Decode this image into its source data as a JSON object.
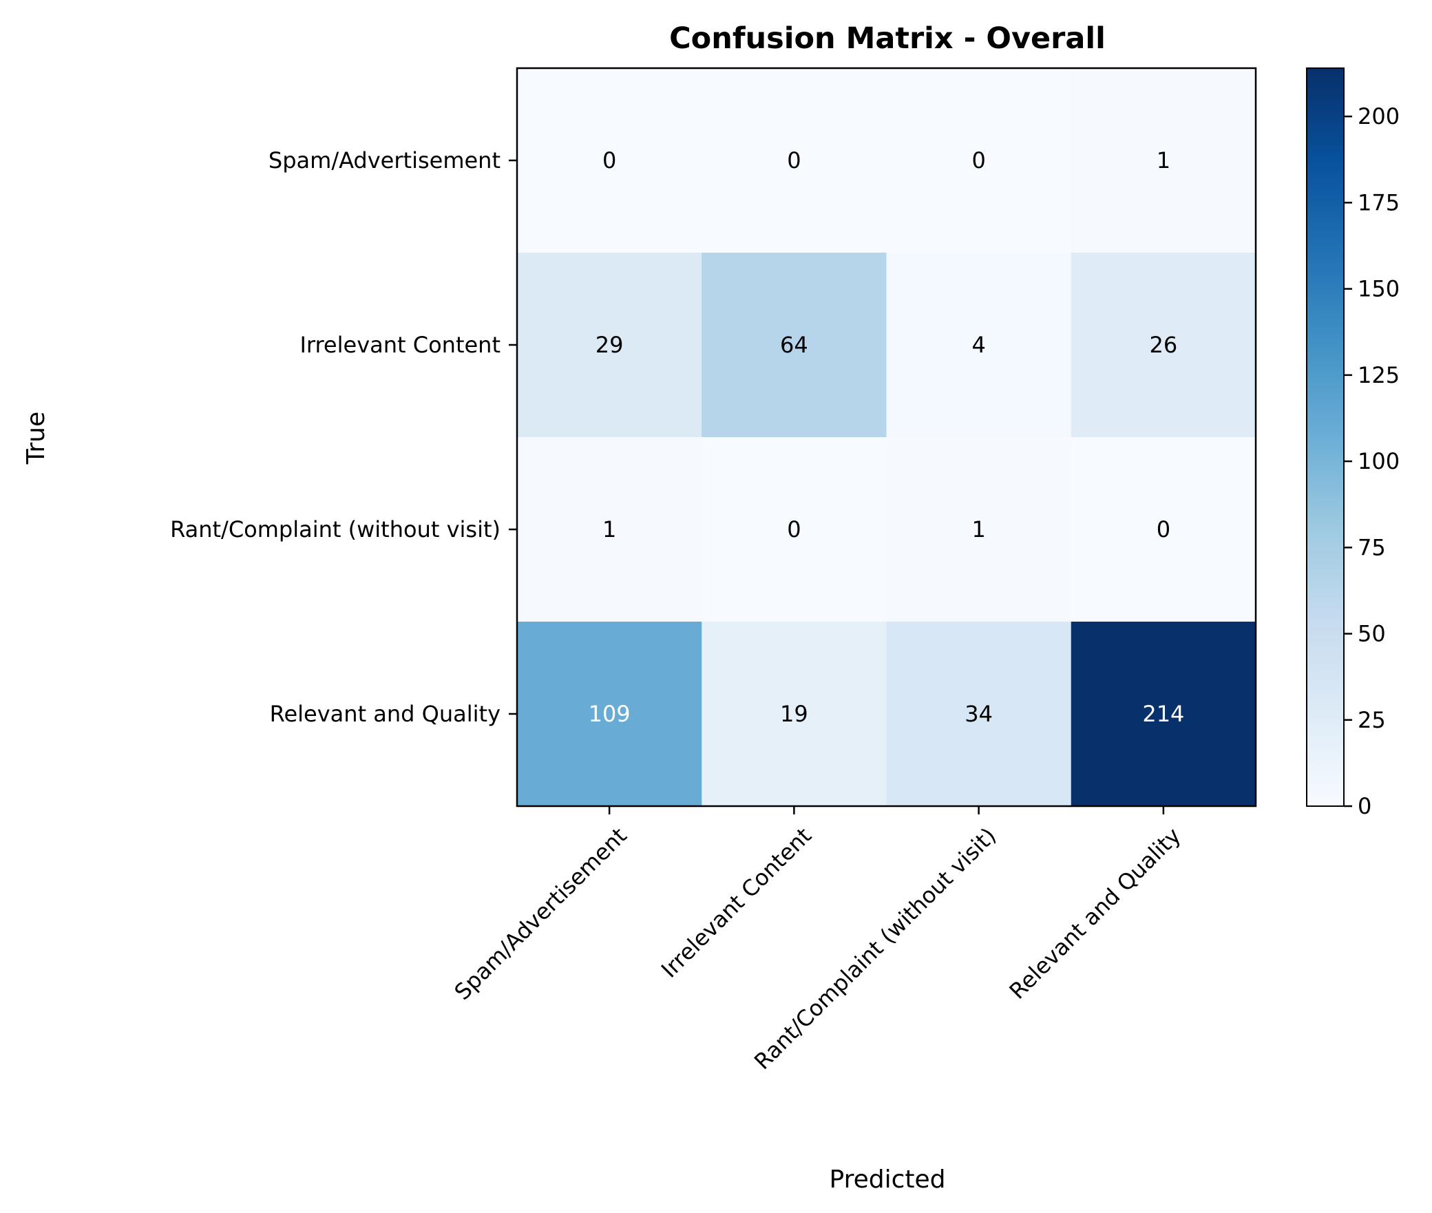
{
  "chart_data": {
    "type": "heatmap",
    "title": "Confusion Matrix - Overall",
    "xlabel": "Predicted",
    "ylabel": "True",
    "row_labels": [
      "Spam/Advertisement",
      "Irrelevant Content",
      "Rant/Complaint (without visit)",
      "Relevant and Quality"
    ],
    "col_labels": [
      "Spam/Advertisement",
      "Irrelevant Content",
      "Rant/Complaint (without visit)",
      "Relevant and Quality"
    ],
    "values": [
      [
        0,
        0,
        0,
        1
      ],
      [
        29,
        64,
        4,
        26
      ],
      [
        1,
        0,
        1,
        0
      ],
      [
        109,
        19,
        34,
        214
      ]
    ],
    "colormap": "Blues",
    "colorbar": {
      "range": [
        0,
        214
      ],
      "ticks": [
        0,
        25,
        50,
        75,
        100,
        125,
        150,
        175,
        200
      ]
    },
    "colors": {
      "low": "#f7fbff",
      "high": "#08306b",
      "text_dark": "#000000",
      "text_light": "#ffffff"
    }
  }
}
